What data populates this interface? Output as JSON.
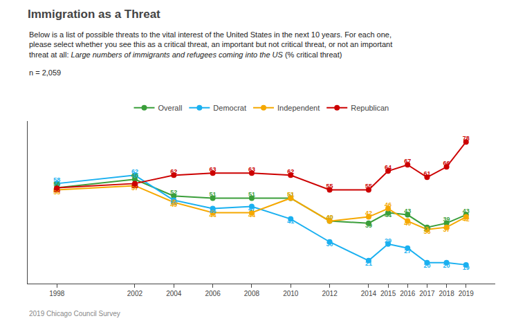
{
  "chart_data": {
    "type": "line",
    "title": "Immigration as a Threat",
    "subtitle": [
      "Below is a list of possible threats to the vital interest of the United States in the next 10 years. For each one,",
      "please select whether you see this as a critical threat, an important but not critical threat, or not an important",
      "threat at all: Large numbers of immigrants and refugees coming into the US (% critical threat)"
    ],
    "annotations": [
      "n = 2,059",
      "2019 Chicago Council Survey"
    ],
    "x": [
      1998,
      2002,
      2004,
      2006,
      2008,
      2010,
      2012,
      2014,
      2015,
      2016,
      2017,
      2018,
      2019
    ],
    "series": [
      {
        "name": "Overall",
        "color": "#3a9e3a",
        "values": [
          56,
          60,
          52,
          51,
          51,
          51,
          40,
          39,
          44,
          43,
          37,
          39,
          43
        ]
      },
      {
        "name": "Democrat",
        "color": "#1ab0f0",
        "values": [
          58,
          62,
          50,
          46,
          47,
          41,
          30,
          21,
          29,
          27,
          20,
          20,
          19
        ]
      },
      {
        "name": "Independent",
        "color": "#f5a800",
        "values": [
          55,
          57,
          49,
          44,
          44,
          51,
          40,
          42,
          46,
          40,
          36,
          37,
          42
        ]
      },
      {
        "name": "Republican",
        "color": "#cc0000",
        "values": [
          56,
          58,
          62,
          63,
          63,
          62,
          55,
          55,
          64,
          67,
          61,
          66,
          78
        ]
      }
    ],
    "xlim": [
      1996.5,
      2020.5
    ],
    "xticks": [
      1998,
      2002,
      2004,
      2006,
      2008,
      2010,
      2012,
      2014,
      2015,
      2016,
      2017,
      2018,
      2019
    ],
    "ylim": [
      10,
      88
    ],
    "grid": false,
    "legend": "top",
    "data_labels": true,
    "tick_labels": "x",
    "marker": "circle"
  }
}
